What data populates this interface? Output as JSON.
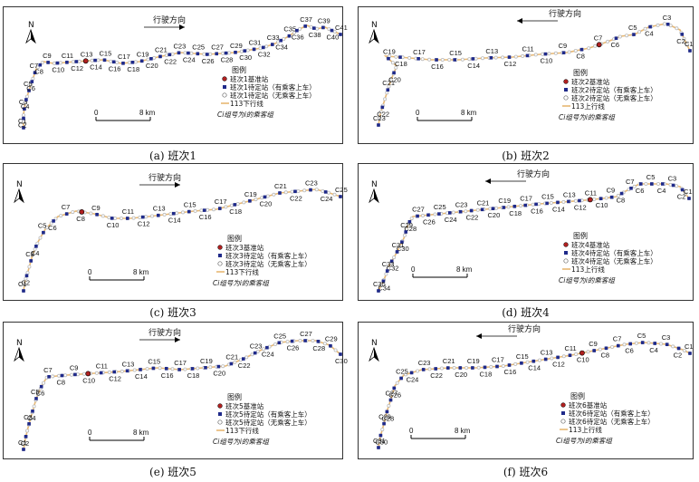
{
  "north_label": "N",
  "legend_title": "图例",
  "legend_group_note": "Ci组号为i的乘客组",
  "scale": {
    "start": "0",
    "end": "8 km"
  },
  "colors": {
    "route": "#e8b873",
    "boarding": "#1f2a8a",
    "base": "#b02020",
    "empty": "#bbbbbb"
  },
  "panels": [
    {
      "caption": "(a) 班次1",
      "direction": "行驶方向",
      "dir_arrow": "right",
      "legend": [
        "班次1基准站",
        "班次1待定站（有乘客上车）",
        "班次1待定站（无乘客上车）",
        "113下行线"
      ],
      "labels": [
        "C1",
        "C2",
        "C3",
        "C4",
        "C5",
        "C6",
        "C7",
        "C8",
        "C9",
        "C10",
        "C11",
        "C12",
        "C13",
        "C14",
        "C15",
        "C16",
        "C17",
        "C18",
        "C19",
        "C20",
        "C21",
        "C22",
        "C23",
        "C24",
        "C25",
        "C26",
        "C27",
        "C28",
        "C29",
        "C30",
        "C31",
        "C32",
        "C33",
        "C34",
        "C35",
        "C36",
        "C37",
        "C38",
        "C39",
        "C40",
        "C41"
      ]
    },
    {
      "caption": "(b) 班次2",
      "direction": "行驶方向",
      "dir_arrow": "left",
      "legend": [
        "班次2基准站",
        "班次2待定站（有乘客上车）",
        "班次2待定站（无乘客上车）",
        "113上行线"
      ],
      "labels": [
        "C1",
        "C2",
        "C3",
        "C4",
        "C5",
        "C6",
        "C7",
        "C8",
        "C9",
        "C10",
        "C11",
        "C12",
        "C13",
        "C14",
        "C15",
        "C16",
        "C17",
        "C18",
        "C19",
        "C20",
        "C21",
        "C22",
        "C23"
      ]
    },
    {
      "caption": "(c) 班次3",
      "direction": "行驶方向",
      "dir_arrow": "right",
      "legend": [
        "班次3基准站",
        "班次3待定站（有乘客上车）",
        "班次3待定站（无乘客上车）",
        "113下行线"
      ],
      "labels": [
        "C1",
        "C2",
        "C3",
        "C4",
        "C5",
        "C6",
        "C7",
        "C8",
        "C9",
        "C10",
        "C11",
        "C12",
        "C13",
        "C14",
        "C15",
        "C16",
        "C17",
        "C18",
        "C19",
        "C20",
        "C21",
        "C22",
        "C23",
        "C24",
        "C25"
      ]
    },
    {
      "caption": "(d) 班次4",
      "direction": "行驶方向",
      "dir_arrow": "left",
      "legend": [
        "班次4基准站",
        "班次4待定站（有乘客上车）",
        "班次4待定站（无乘客上车）",
        "113上行线"
      ],
      "labels": [
        "C1",
        "C2",
        "C3",
        "C4",
        "C5",
        "C6",
        "C7",
        "C8",
        "C9",
        "C10",
        "C11",
        "C12",
        "C13",
        "C14",
        "C15",
        "C16",
        "C17",
        "C18",
        "C19",
        "C20",
        "C21",
        "C22",
        "C23",
        "C24",
        "C25",
        "C26",
        "C27",
        "C28",
        "C29",
        "C30",
        "C31",
        "C32",
        "C33",
        "C34",
        "C35"
      ]
    },
    {
      "caption": "(e) 班次5",
      "direction": "行驶方向",
      "dir_arrow": "right",
      "legend": [
        "班次5基准站",
        "班次5待定站（有乘客上车）",
        "班次5待定站（无乘客上车）",
        "113下行线"
      ],
      "labels": [
        "C1",
        "C2",
        "C3",
        "C4",
        "C5",
        "C6",
        "C7",
        "C8",
        "C9",
        "C10",
        "C11",
        "C12",
        "C13",
        "C14",
        "C15",
        "C16",
        "C17",
        "C18",
        "C19",
        "C20",
        "C21",
        "C22",
        "C23",
        "C24",
        "C25",
        "C26",
        "C27",
        "C28",
        "C29",
        "C30"
      ]
    },
    {
      "caption": "(f) 班次6",
      "direction": "行驶方向",
      "dir_arrow": "left",
      "legend": [
        "班次6基准站",
        "班次6待定站（有乘客上车）",
        "班次6待定站（无乘客上车）",
        "113上行线"
      ],
      "labels": [
        "C1",
        "C2",
        "C3",
        "C4",
        "C5",
        "C6",
        "C7",
        "C8",
        "C9",
        "C10",
        "C11",
        "C12",
        "C13",
        "C14",
        "C15",
        "C16",
        "C17",
        "C18",
        "C19",
        "C20",
        "C21",
        "C22",
        "C23",
        "C24",
        "C25",
        "C26",
        "C27",
        "C28",
        "C29",
        "C30",
        "C31"
      ]
    }
  ]
}
